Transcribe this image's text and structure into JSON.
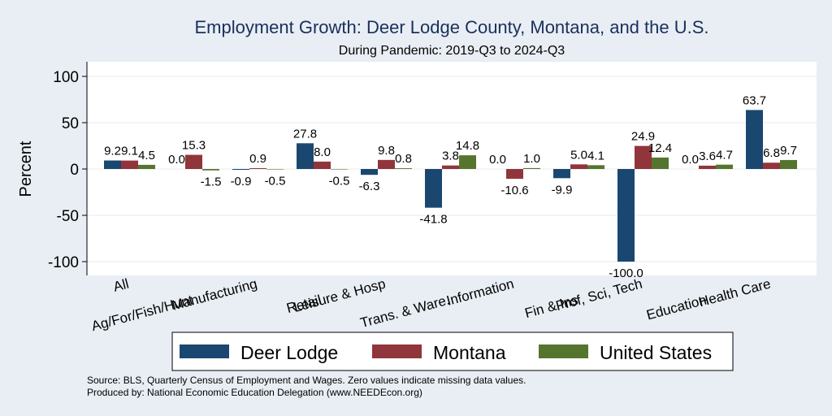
{
  "chart_data": {
    "type": "bar",
    "title": "Employment Growth: Deer Lodge County, Montana, and the U.S.",
    "subtitle": "During Pandemic: 2019-Q3 to 2024-Q3",
    "xlabel": "",
    "ylabel": "Percent",
    "ylim": [
      -105,
      115
    ],
    "yticks": [
      100,
      50,
      0,
      -50,
      -100
    ],
    "grid": true,
    "legend_position": "bottom",
    "categories": [
      "All",
      "Ag/For/Fish/Hunt",
      "Manufacturing",
      "Retail",
      "Leisure & Hosp",
      "Trans. & Ware.",
      "Information",
      "Fin & Ins",
      "Prof, Sci, Tech",
      "Education",
      "Health Care"
    ],
    "series": [
      {
        "name": "Deer Lodge",
        "color": "#1a476f",
        "values": [
          9.2,
          0.0,
          -0.9,
          27.8,
          -6.3,
          -41.8,
          0.0,
          -9.9,
          -100.0,
          0.0,
          63.7
        ],
        "labels": [
          "9.2",
          "0.0",
          "-0.9",
          "27.8",
          "-6.3",
          "-41.8",
          "0.0",
          "-9.9",
          "-100.0",
          "0.0",
          "63.7"
        ]
      },
      {
        "name": "Montana",
        "color": "#90353b",
        "values": [
          9.1,
          15.3,
          0.9,
          8.0,
          9.8,
          3.8,
          -10.6,
          5.0,
          24.9,
          3.6,
          6.8
        ],
        "labels": [
          "9.1",
          "15.3",
          "0.9",
          "8.0",
          "9.8",
          "3.8",
          "-10.6",
          "5.0",
          "24.9",
          "3.6",
          "6.8"
        ]
      },
      {
        "name": "United States",
        "color": "#55752f",
        "values": [
          4.5,
          -1.5,
          -0.5,
          -0.5,
          0.8,
          14.8,
          1.0,
          4.1,
          12.4,
          4.7,
          9.7
        ],
        "labels": [
          "4.5",
          "-1.5",
          "-0.5",
          "-0.5",
          "0.8",
          "14.8",
          "1.0",
          "4.1",
          "12.4",
          "4.7",
          "9.7"
        ]
      }
    ],
    "notes": [
      "Source: BLS, Quarterly Census of Employment and Wages. Zero values indicate missing data values.",
      "Produced by: National Economic Education Delegation (www.NEEDEcon.org)"
    ]
  }
}
